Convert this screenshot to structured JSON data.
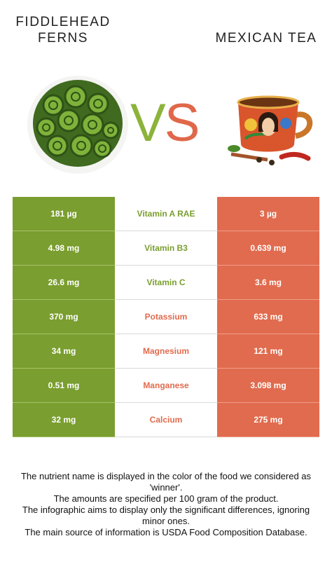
{
  "left_food": {
    "name": "FIDDLEHEAD\nFERNS",
    "color": "#7a9e2f"
  },
  "right_food": {
    "name": "MEXICAN TEA",
    "color": "#e16b4e"
  },
  "vs": {
    "v": "V",
    "s": "S"
  },
  "rows": [
    {
      "left": "181 µg",
      "nutrient": "Vitamin A RAE",
      "right": "3 µg",
      "winner": "left"
    },
    {
      "left": "4.98 mg",
      "nutrient": "Vitamin B3",
      "right": "0.639 mg",
      "winner": "left"
    },
    {
      "left": "26.6 mg",
      "nutrient": "Vitamin C",
      "right": "3.6 mg",
      "winner": "left"
    },
    {
      "left": "370 mg",
      "nutrient": "Potassium",
      "right": "633 mg",
      "winner": "right"
    },
    {
      "left": "34 mg",
      "nutrient": "Magnesium",
      "right": "121 mg",
      "winner": "right"
    },
    {
      "left": "0.51 mg",
      "nutrient": "Manganese",
      "right": "3.098 mg",
      "winner": "right"
    },
    {
      "left": "32 mg",
      "nutrient": "Calcium",
      "right": "275 mg",
      "winner": "right"
    }
  ],
  "footer": [
    "The nutrient name is displayed in the color of the food we considered as 'winner'.",
    "The amounts are specified per 100 gram of the product.",
    "The infographic aims to display only the significant differences, ignoring minor ones.",
    "The main source of information is USDA Food Composition Database."
  ]
}
